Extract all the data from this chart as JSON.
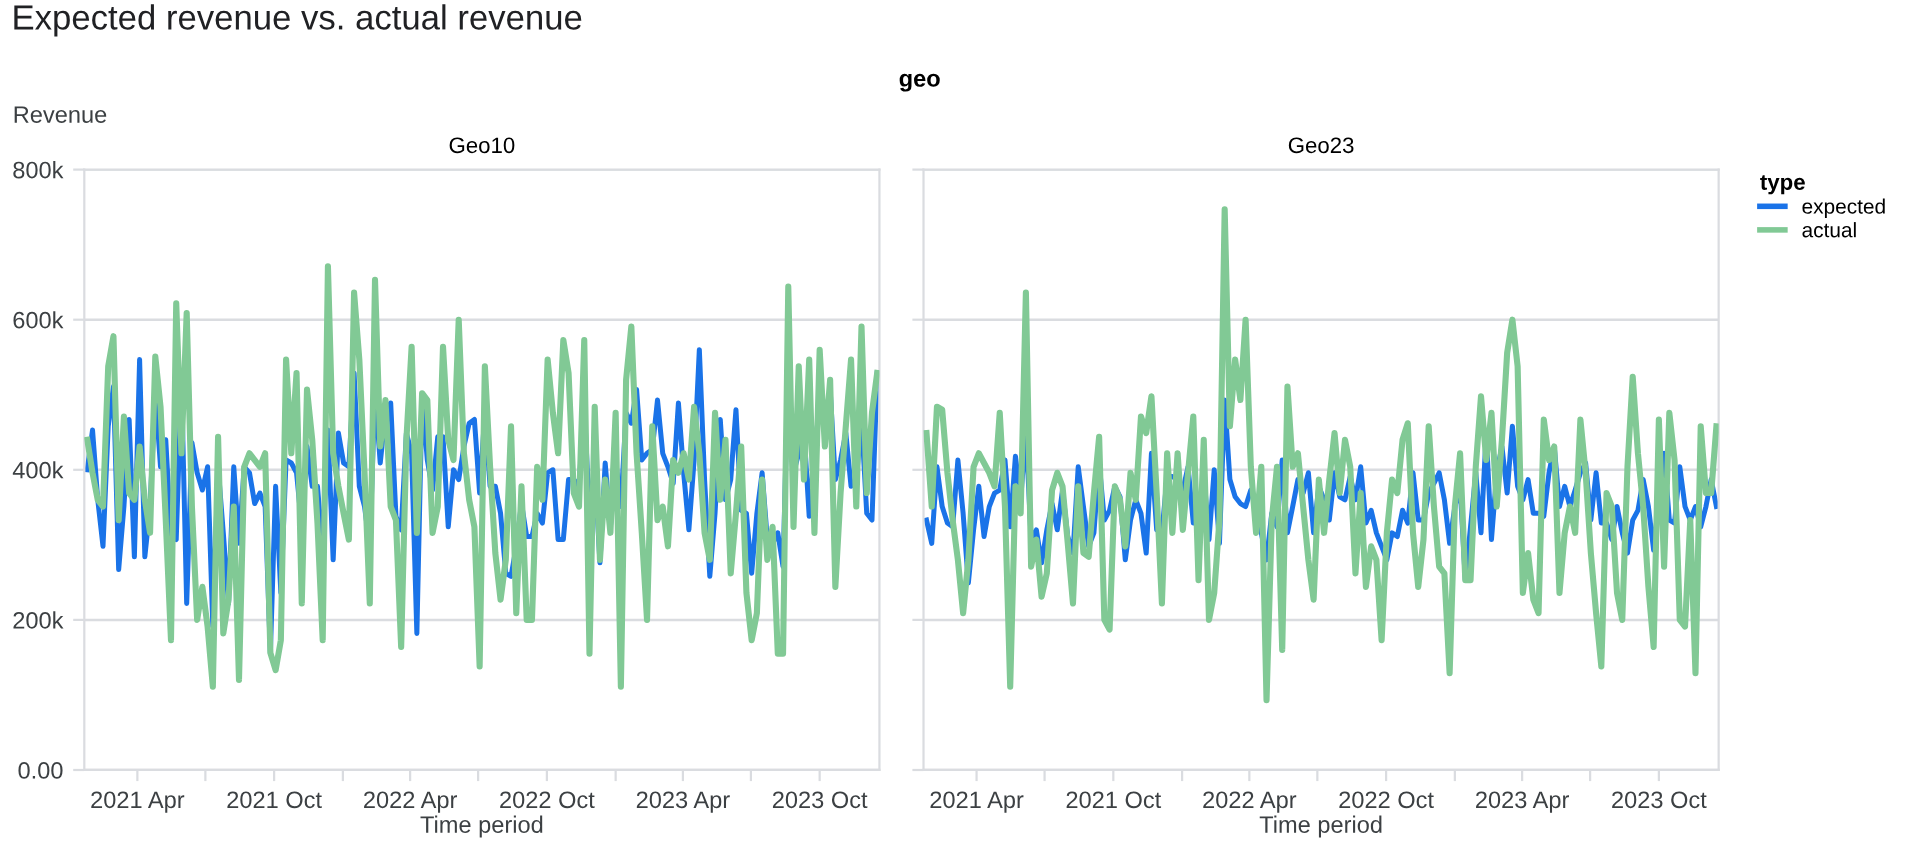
{
  "chart_data": [
    {
      "type": "line",
      "title": "Geo10",
      "ylabel": "Revenue",
      "xlabel": "Time period",
      "annotations": [
        "Expected revenue vs. actual revenue",
        "geo"
      ],
      "legend": "right",
      "legend_title": "type",
      "x": [
        "2021-01-24",
        "2021-01-31",
        "2021-02-07",
        "2021-02-14",
        "2021-02-21",
        "2021-02-28",
        "2021-03-07",
        "2021-03-14",
        "2021-03-21",
        "2021-03-28",
        "2021-04-04",
        "2021-04-11",
        "2021-04-18",
        "2021-04-25",
        "2021-05-02",
        "2021-05-09",
        "2021-05-16",
        "2021-05-23",
        "2021-05-30",
        "2021-06-06",
        "2021-06-13",
        "2021-06-20",
        "2021-06-27",
        "2021-07-04",
        "2021-07-11",
        "2021-07-18",
        "2021-07-25",
        "2021-08-01",
        "2021-08-08",
        "2021-08-15",
        "2021-08-22",
        "2021-08-29",
        "2021-09-05",
        "2021-09-12",
        "2021-09-19",
        "2021-09-26",
        "2021-10-03",
        "2021-10-10",
        "2021-10-17",
        "2021-10-24",
        "2021-10-31",
        "2021-11-07",
        "2021-11-14",
        "2021-11-21",
        "2021-11-28",
        "2021-12-05",
        "2021-12-12",
        "2021-12-19",
        "2021-12-26",
        "2022-01-02",
        "2022-01-09",
        "2022-01-16",
        "2022-01-23",
        "2022-01-30",
        "2022-02-06",
        "2022-02-13",
        "2022-02-20",
        "2022-02-27",
        "2022-03-06",
        "2022-03-13",
        "2022-03-20",
        "2022-03-27",
        "2022-04-03",
        "2022-04-10",
        "2022-04-17",
        "2022-04-24",
        "2022-05-01",
        "2022-05-08",
        "2022-05-15",
        "2022-05-22",
        "2022-05-29",
        "2022-06-05",
        "2022-06-12",
        "2022-06-19",
        "2022-06-26",
        "2022-07-03",
        "2022-07-10",
        "2022-07-17",
        "2022-07-24",
        "2022-07-31",
        "2022-08-07",
        "2022-08-14",
        "2022-08-21",
        "2022-08-28",
        "2022-09-04",
        "2022-09-11",
        "2022-09-18",
        "2022-09-25",
        "2022-10-02",
        "2022-10-09",
        "2022-10-16",
        "2022-10-23",
        "2022-10-30",
        "2022-11-06",
        "2022-11-13",
        "2022-11-20",
        "2022-11-27",
        "2022-12-04",
        "2022-12-11",
        "2022-12-18",
        "2022-12-25",
        "2023-01-01",
        "2023-01-08",
        "2023-01-15",
        "2023-01-22",
        "2023-01-29",
        "2023-02-05",
        "2023-02-12",
        "2023-02-19",
        "2023-02-26",
        "2023-03-05",
        "2023-03-12",
        "2023-03-19",
        "2023-03-26",
        "2023-04-02",
        "2023-04-09",
        "2023-04-16",
        "2023-04-23",
        "2023-04-30",
        "2023-05-07",
        "2023-05-14",
        "2023-05-21",
        "2023-05-28",
        "2023-06-04",
        "2023-06-11",
        "2023-06-18",
        "2023-06-25",
        "2023-07-02",
        "2023-07-09",
        "2023-07-16",
        "2023-07-23",
        "2023-07-30",
        "2023-08-06",
        "2023-08-13",
        "2023-08-20",
        "2023-08-27",
        "2023-09-03",
        "2023-09-10",
        "2023-09-17",
        "2023-09-24",
        "2023-10-01",
        "2023-10-08",
        "2023-10-15",
        "2023-10-22",
        "2023-10-29",
        "2023-11-05",
        "2023-11-12",
        "2023-11-19",
        "2023-11-26",
        "2023-12-03",
        "2023-12-10",
        "2023-12-17"
      ],
      "series": [
        {
          "name": "expected",
          "color": "#1a73e8",
          "values": [
            400,
            453,
            360,
            298,
            458,
            511,
            267,
            351,
            467,
            284,
            547,
            284,
            351,
            502,
            404,
            440,
            311,
            307,
            520,
            222,
            436,
            396,
            373,
            404,
            191,
            404,
            316,
            222,
            404,
            302,
            404,
            396,
            355,
            369,
            351,
            156,
            378,
            236,
            413,
            409,
            396,
            324,
            431,
            378,
            378,
            293,
            453,
            280,
            449,
            409,
            404,
            529,
            378,
            351,
            298,
            507,
            409,
            476,
            489,
            338,
            320,
            449,
            422,
            182,
            498,
            413,
            373,
            444,
            444,
            324,
            400,
            387,
            431,
            462,
            467,
            369,
            476,
            378,
            378,
            342,
            262,
            258,
            298,
            355,
            311,
            311,
            342,
            329,
            396,
            400,
            307,
            307,
            387,
            387,
            378,
            484,
            342,
            404,
            276,
            409,
            324,
            413,
            351,
            476,
            462,
            507,
            413,
            422,
            427,
            493,
            422,
            404,
            382,
            489,
            396,
            320,
            413,
            560,
            387,
            258,
            342,
            467,
            360,
            387,
            480,
            346,
            342,
            262,
            342,
            396,
            307,
            302,
            316,
            271,
            538,
            396,
            422,
            453,
            338,
            431,
            480,
            467,
            507,
            387,
            413,
            449,
            378,
            387,
            467,
            342,
            333,
            529
          ]
        },
        {
          "name": "actual",
          "color": "#81c995",
          "values": [
            440,
            396,
            360,
            351,
            538,
            578,
            333,
            471,
            369,
            360,
            431,
            360,
            316,
            551,
            484,
            333,
            173,
            622,
            422,
            609,
            351,
            200,
            244,
            191,
            111,
            444,
            182,
            227,
            351,
            120,
            404,
            422,
            413,
            404,
            422,
            156,
            133,
            173,
            547,
            422,
            529,
            222,
            507,
            440,
            329,
            173,
            671,
            422,
            378,
            342,
            307,
            636,
            547,
            396,
            222,
            653,
            431,
            493,
            351,
            333,
            164,
            440,
            564,
            316,
            502,
            493,
            316,
            351,
            564,
            440,
            413,
            600,
            422,
            360,
            324,
            138,
            538,
            404,
            289,
            227,
            280,
            458,
            209,
            378,
            200,
            200,
            404,
            360,
            547,
            476,
            422,
            573,
            529,
            369,
            351,
            573,
            155,
            484,
            280,
            387,
            316,
            476,
            111,
            520,
            591,
            422,
            316,
            200,
            458,
            333,
            351,
            298,
            413,
            396,
            422,
            387,
            484,
            422,
            316,
            280,
            476,
            360,
            440,
            262,
            342,
            431,
            236,
            173,
            209,
            387,
            280,
            324,
            155,
            155,
            644,
            324,
            538,
            387,
            547,
            316,
            560,
            431,
            520,
            244,
            369,
            458,
            547,
            351,
            591,
            369,
            476,
            529
          ]
        }
      ],
      "xlim": [
        "2021-01-20",
        "2023-12-20"
      ],
      "xticks": [
        {
          "value": "2021-04-01",
          "label": "2021 Apr"
        },
        {
          "value": "2021-07-01",
          "label": null
        },
        {
          "value": "2021-10-01",
          "label": "2021 Oct"
        },
        {
          "value": "2022-01-01",
          "label": null
        },
        {
          "value": "2022-04-01",
          "label": "2022 Apr"
        },
        {
          "value": "2022-07-01",
          "label": null
        },
        {
          "value": "2022-10-01",
          "label": "2022 Oct"
        },
        {
          "value": "2023-01-01",
          "label": null
        },
        {
          "value": "2023-04-01",
          "label": "2023 Apr"
        },
        {
          "value": "2023-07-01",
          "label": null
        },
        {
          "value": "2023-10-01",
          "label": "2023 Oct"
        }
      ],
      "ylim": [
        0,
        800
      ],
      "yticks": [
        {
          "value": 0,
          "label": "0.00"
        },
        {
          "value": 200,
          "label": "200k"
        },
        {
          "value": 400,
          "label": "400k"
        },
        {
          "value": 600,
          "label": "600k"
        },
        {
          "value": 800,
          "label": "800k"
        }
      ],
      "grid": "y",
      "marker": "none",
      "line_style": "solid"
    },
    {
      "type": "line",
      "title": "Geo23",
      "xlabel": "Time period",
      "tick_labels": "x",
      "x": [
        "2021-01-24",
        "2021-01-31",
        "2021-02-07",
        "2021-02-14",
        "2021-02-21",
        "2021-02-28",
        "2021-03-07",
        "2021-03-14",
        "2021-03-21",
        "2021-03-28",
        "2021-04-04",
        "2021-04-11",
        "2021-04-18",
        "2021-04-25",
        "2021-05-02",
        "2021-05-09",
        "2021-05-16",
        "2021-05-23",
        "2021-05-30",
        "2021-06-06",
        "2021-06-13",
        "2021-06-20",
        "2021-06-27",
        "2021-07-04",
        "2021-07-11",
        "2021-07-18",
        "2021-07-25",
        "2021-08-01",
        "2021-08-08",
        "2021-08-15",
        "2021-08-22",
        "2021-08-29",
        "2021-09-05",
        "2021-09-12",
        "2021-09-19",
        "2021-09-26",
        "2021-10-03",
        "2021-10-10",
        "2021-10-17",
        "2021-10-24",
        "2021-10-31",
        "2021-11-07",
        "2021-11-14",
        "2021-11-21",
        "2021-11-28",
        "2021-12-05",
        "2021-12-12",
        "2021-12-19",
        "2021-12-26",
        "2022-01-02",
        "2022-01-09",
        "2022-01-16",
        "2022-01-23",
        "2022-01-30",
        "2022-02-06",
        "2022-02-13",
        "2022-02-20",
        "2022-02-27",
        "2022-03-06",
        "2022-03-13",
        "2022-03-20",
        "2022-03-27",
        "2022-04-03",
        "2022-04-10",
        "2022-04-17",
        "2022-04-24",
        "2022-05-01",
        "2022-05-08",
        "2022-05-15",
        "2022-05-22",
        "2022-05-29",
        "2022-06-05",
        "2022-06-12",
        "2022-06-19",
        "2022-06-26",
        "2022-07-03",
        "2022-07-10",
        "2022-07-17",
        "2022-07-24",
        "2022-07-31",
        "2022-08-07",
        "2022-08-14",
        "2022-08-21",
        "2022-08-28",
        "2022-09-04",
        "2022-09-11",
        "2022-09-18",
        "2022-09-25",
        "2022-10-02",
        "2022-10-09",
        "2022-10-16",
        "2022-10-23",
        "2022-10-30",
        "2022-11-06",
        "2022-11-13",
        "2022-11-20",
        "2022-11-27",
        "2022-12-04",
        "2022-12-11",
        "2022-12-18",
        "2022-12-25",
        "2023-01-01",
        "2023-01-08",
        "2023-01-15",
        "2023-01-22",
        "2023-01-29",
        "2023-02-05",
        "2023-02-12",
        "2023-02-19",
        "2023-02-26",
        "2023-03-05",
        "2023-03-12",
        "2023-03-19",
        "2023-03-26",
        "2023-04-02",
        "2023-04-09",
        "2023-04-16",
        "2023-04-23",
        "2023-04-30",
        "2023-05-07",
        "2023-05-14",
        "2023-05-21",
        "2023-05-28",
        "2023-06-04",
        "2023-06-11",
        "2023-06-18",
        "2023-06-25",
        "2023-07-02",
        "2023-07-09",
        "2023-07-16",
        "2023-07-23",
        "2023-07-30",
        "2023-08-06",
        "2023-08-13",
        "2023-08-20",
        "2023-08-27",
        "2023-09-03",
        "2023-09-10",
        "2023-09-17",
        "2023-09-24",
        "2023-10-01",
        "2023-10-08",
        "2023-10-15",
        "2023-10-22",
        "2023-10-29",
        "2023-11-05",
        "2023-11-12",
        "2023-11-19",
        "2023-11-26",
        "2023-12-03",
        "2023-12-10",
        "2023-12-17"
      ],
      "series": [
        {
          "color": "#1a73e8",
          "values": [
            333,
            302,
            404,
            351,
            329,
            324,
            413,
            342,
            249,
            320,
            378,
            311,
            351,
            369,
            373,
            413,
            324,
            418,
            360,
            453,
            307,
            320,
            276,
            320,
            355,
            320,
            373,
            311,
            289,
            404,
            351,
            298,
            316,
            409,
            333,
            346,
            378,
            364,
            280,
            333,
            360,
            342,
            289,
            422,
            320,
            316,
            391,
            391,
            387,
            373,
            404,
            329,
            329,
            396,
            307,
            400,
            302,
            493,
            387,
            364,
            355,
            351,
            373,
            355,
            316,
            280,
            342,
            324,
            413,
            316,
            351,
            387,
            369,
            396,
            316,
            378,
            360,
            333,
            396,
            364,
            360,
            391,
            360,
            404,
            329,
            346,
            316,
            298,
            280,
            316,
            311,
            346,
            329,
            396,
            333,
            333,
            369,
            382,
            396,
            360,
            302,
            351,
            378,
            253,
            324,
            396,
            316,
            449,
            307,
            396,
            431,
            369,
            458,
            378,
            360,
            387,
            342,
            342,
            338,
            396,
            431,
            351,
            378,
            351,
            373,
            396,
            409,
            333,
            396,
            329,
            329,
            307,
            351,
            316,
            289,
            333,
            346,
            387,
            351,
            293,
            360,
            422,
            333,
            329,
            404,
            351,
            333,
            351,
            324,
            351,
            387,
            351
          ]
        },
        {
          "color": "#81c995",
          "values": [
            449,
            351,
            484,
            480,
            396,
            333,
            280,
            209,
            280,
            404,
            422,
            409,
            396,
            378,
            476,
            351,
            111,
            378,
            342,
            636,
            271,
            307,
            231,
            262,
            373,
            396,
            378,
            302,
            222,
            378,
            289,
            284,
            369,
            444,
            200,
            187,
            378,
            360,
            298,
            396,
            360,
            471,
            449,
            498,
            369,
            222,
            422,
            316,
            422,
            320,
            396,
            471,
            253,
            440,
            200,
            236,
            333,
            747,
            458,
            547,
            493,
            600,
            404,
            316,
            404,
            93,
            333,
            404,
            160,
            511,
            404,
            422,
            351,
            280,
            227,
            387,
            316,
            387,
            449,
            369,
            440,
            404,
            262,
            369,
            244,
            298,
            280,
            173,
            316,
            387,
            369,
            440,
            462,
            316,
            244,
            307,
            458,
            351,
            271,
            262,
            129,
            351,
            422,
            253,
            253,
            404,
            498,
            413,
            476,
            351,
            440,
            556,
            600,
            538,
            236,
            289,
            227,
            209,
            467,
            413,
            431,
            236,
            316,
            351,
            316,
            467,
            396,
            289,
            209,
            138,
            369,
            351,
            236,
            200,
            404,
            524,
            422,
            351,
            244,
            164,
            467,
            271,
            476,
            413,
            200,
            191,
            333,
            129,
            458,
            369,
            369,
            458
          ]
        }
      ],
      "xlim": [
        "2021-01-20",
        "2023-12-20"
      ],
      "xticks": [
        {
          "value": "2021-04-01",
          "label": "2021 Apr"
        },
        {
          "value": "2021-07-01",
          "label": null
        },
        {
          "value": "2021-10-01",
          "label": "2021 Oct"
        },
        {
          "value": "2022-01-01",
          "label": null
        },
        {
          "value": "2022-04-01",
          "label": "2022 Apr"
        },
        {
          "value": "2022-07-01",
          "label": null
        },
        {
          "value": "2022-10-01",
          "label": "2022 Oct"
        },
        {
          "value": "2023-01-01",
          "label": null
        },
        {
          "value": "2023-04-01",
          "label": "2023 Apr"
        },
        {
          "value": "2023-07-01",
          "label": null
        },
        {
          "value": "2023-10-01",
          "label": "2023 Oct"
        }
      ],
      "ylim": [
        0,
        800
      ],
      "yticks": [
        {
          "value": 0,
          "label": null
        },
        {
          "value": 200,
          "label": null
        },
        {
          "value": 400,
          "label": null
        },
        {
          "value": 600,
          "label": null
        },
        {
          "value": 800,
          "label": null
        }
      ],
      "grid": "y",
      "marker": "none",
      "line_style": "solid"
    }
  ]
}
